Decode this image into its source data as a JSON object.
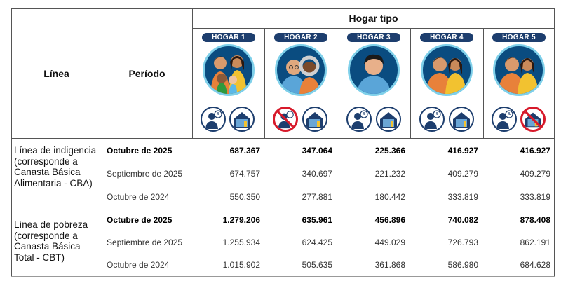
{
  "header": {
    "linea_label": "Línea",
    "periodo_label": "Período",
    "hogar_tipo_label": "Hogar tipo",
    "hogares": [
      {
        "label": "HOGAR 1",
        "icons": [
          "worker-clock-icon",
          "house-icon"
        ],
        "crossed": []
      },
      {
        "label": "HOGAR 2",
        "icons": [
          "worker-clock-icon",
          "house-icon"
        ],
        "crossed": [
          "worker-clock-icon"
        ]
      },
      {
        "label": "HOGAR 3",
        "icons": [
          "worker-clock-icon",
          "house-icon"
        ],
        "crossed": []
      },
      {
        "label": "HOGAR 4",
        "icons": [
          "worker-clock-icon",
          "house-icon"
        ],
        "crossed": []
      },
      {
        "label": "HOGAR 5",
        "icons": [
          "worker-clock-icon",
          "house-icon"
        ],
        "crossed": [
          "house-icon"
        ]
      }
    ]
  },
  "sections": [
    {
      "linea": "Línea de indigencia (corresponde a Canasta Básica Alimentaria - CBA)",
      "rows": [
        {
          "periodo": "Octubre de 2025",
          "bold": true,
          "values": [
            "687.367",
            "347.064",
            "225.366",
            "416.927",
            "416.927"
          ]
        },
        {
          "periodo": "Septiembre de 2025",
          "bold": false,
          "values": [
            "674.757",
            "340.697",
            "221.232",
            "409.279",
            "409.279"
          ]
        },
        {
          "periodo": "Octubre de 2024",
          "bold": false,
          "values": [
            "550.350",
            "277.881",
            "180.442",
            "333.819",
            "333.819"
          ]
        }
      ]
    },
    {
      "linea": "Línea de pobreza (corresponde a Canasta Básica Total - CBT)",
      "rows": [
        {
          "periodo": "Octubre de 2025",
          "bold": true,
          "values": [
            "1.279.206",
            "635.961",
            "456.896",
            "740.082",
            "878.408"
          ]
        },
        {
          "periodo": "Septiembre de 2025",
          "bold": false,
          "values": [
            "1.255.934",
            "624.425",
            "449.029",
            "726.793",
            "862.191"
          ]
        },
        {
          "periodo": "Octubre de 2024",
          "bold": false,
          "values": [
            "1.015.902",
            "505.635",
            "361.868",
            "586.980",
            "684.628"
          ]
        }
      ]
    }
  ],
  "colors": {
    "navy": "#1d3e6e",
    "portrait_bg": "#0a4c80",
    "portrait_ring": "#7fd0ea",
    "cross": "#d7192a"
  }
}
